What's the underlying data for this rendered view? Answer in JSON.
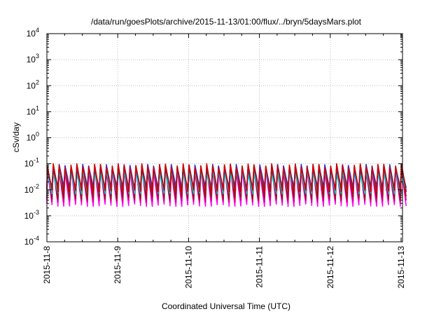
{
  "chart_data": {
    "type": "line",
    "title": "/data/run/goesPlots/archive/2015-11-13/01:00/flux/../bryn/5daysMars.plot",
    "xlabel": "Coordinated Universal Time (UTC)",
    "ylabel": "cSv/day",
    "yscale": "log",
    "ylim_exponents": [
      -4,
      4
    ],
    "y_tick_labels": [
      {
        "base": "10",
        "exp": "4"
      },
      {
        "base": "10",
        "exp": "3"
      },
      {
        "base": "10",
        "exp": "2"
      },
      {
        "base": "10",
        "exp": "1"
      },
      {
        "base": "10",
        "exp": "0"
      },
      {
        "base": "10",
        "exp": "-1"
      },
      {
        "base": "10",
        "exp": "-2"
      },
      {
        "base": "10",
        "exp": "-3"
      },
      {
        "base": "10",
        "exp": "-4"
      }
    ],
    "x_tick_labels": [
      "2015-11-8",
      "2015-11-9",
      "2015-11-10",
      "2015-11-11",
      "2015-11-12",
      "2015-11-13"
    ],
    "xlim_days": [
      0,
      5.02
    ],
    "grid": true,
    "series_colors": [
      "#ff00ff",
      "#d4006e",
      "#8b1a1a",
      "#00cccc",
      "#2a2aff",
      "#2050c0",
      "#cc0000"
    ],
    "sawtooth": {
      "cycles_per_day": 12,
      "series": [
        {
          "peak": 0.06,
          "trough": 0.0026
        },
        {
          "peak": 0.065,
          "trough": 0.0038
        },
        {
          "peak": 0.07,
          "trough": 0.005
        },
        {
          "peak": 0.048,
          "trough": 0.008
        },
        {
          "peak": 0.08,
          "trough": 0.012
        },
        {
          "peak": 0.075,
          "trough": 0.0105
        },
        {
          "peak": 0.085,
          "trough": 0.009
        }
      ]
    }
  }
}
